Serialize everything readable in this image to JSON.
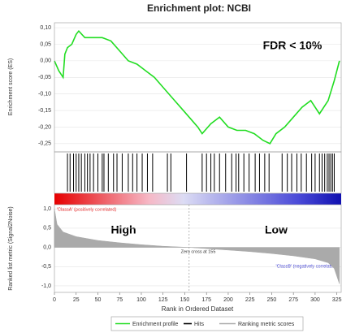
{
  "chart_data": [
    {
      "type": "line",
      "title": "Enrichment plot: NCBI",
      "ylabel": "Enrichment score (ES)",
      "annotation": "FDR < 10%",
      "xlim": [
        0,
        330
      ],
      "ylim": [
        -0.275,
        0.115
      ],
      "yticks": [
        {
          "value": 0.1,
          "label": "0,10"
        },
        {
          "value": 0.05,
          "label": "0,05"
        },
        {
          "value": 0,
          "label": "0,00"
        },
        {
          "value": -0.05,
          "label": "-0,05"
        },
        {
          "value": -0.1,
          "label": "-0,10"
        },
        {
          "value": -0.15,
          "label": "-0,15"
        },
        {
          "value": -0.2,
          "label": "-0,20"
        },
        {
          "value": -0.25,
          "label": "-0,25"
        }
      ],
      "grid": true,
      "series": [
        {
          "name": "Enrichment profile",
          "color": "#22dd22",
          "x": [
            0,
            5,
            10,
            12,
            15,
            20,
            25,
            28,
            35,
            45,
            55,
            65,
            75,
            85,
            95,
            105,
            115,
            125,
            135,
            145,
            155,
            165,
            170,
            180,
            190,
            200,
            210,
            220,
            230,
            240,
            248,
            255,
            265,
            275,
            285,
            295,
            305,
            315,
            322,
            328
          ],
          "values": [
            0,
            -0.03,
            -0.05,
            0.02,
            0.04,
            0.05,
            0.08,
            0.09,
            0.07,
            0.07,
            0.07,
            0.06,
            0.03,
            0,
            -0.01,
            -0.03,
            -0.05,
            -0.08,
            -0.11,
            -0.14,
            -0.17,
            -0.2,
            -0.22,
            -0.19,
            -0.17,
            -0.2,
            -0.21,
            -0.21,
            -0.22,
            -0.24,
            -0.25,
            -0.22,
            -0.2,
            -0.17,
            -0.14,
            -0.12,
            -0.16,
            -0.12,
            -0.06,
            0
          ]
        }
      ]
    },
    {
      "type": "rug",
      "xlim": [
        0,
        330
      ],
      "series": [
        {
          "name": "Hits",
          "color": "#000000",
          "x": [
            15,
            18,
            22,
            25,
            28,
            31,
            35,
            38,
            41,
            45,
            50,
            55,
            57,
            62,
            68,
            72,
            78,
            85,
            90,
            95,
            101,
            107,
            113,
            130,
            134,
            152,
            170,
            175,
            180,
            184,
            190,
            197,
            204,
            209,
            212,
            218,
            224,
            231,
            236,
            242,
            247,
            262,
            268,
            273,
            279,
            284,
            290,
            296,
            300,
            305,
            308,
            311,
            314,
            316,
            318,
            320,
            322
          ]
        }
      ]
    },
    {
      "type": "area",
      "ylabel": "Ranked list metric (Signal2Noise)",
      "xlabel": "Rank in Ordered Dataset",
      "class_a": "'ClassA' (positively correlated)",
      "class_b": "'ClassB' (negatively correlated)",
      "high": "High",
      "low": "Low",
      "zero_cross_label": "Zero cross at 155",
      "zero_cross": 155,
      "xlim": [
        0,
        330
      ],
      "ylim": [
        -1.17,
        1.11
      ],
      "xticks": [
        0,
        25,
        50,
        75,
        100,
        125,
        150,
        175,
        200,
        225,
        250,
        275,
        300,
        325
      ],
      "yticks": [
        {
          "value": 1,
          "label": "1,0"
        },
        {
          "value": 0.5,
          "label": "0,5"
        },
        {
          "value": 0,
          "label": "0,0"
        },
        {
          "value": -0.5,
          "label": "-0,5"
        },
        {
          "value": -1,
          "label": "-1,0"
        }
      ],
      "grid": true,
      "series": [
        {
          "name": "Ranking metric scores",
          "color": "#aaaaaa",
          "x": [
            0,
            3,
            10,
            25,
            50,
            75,
            100,
            125,
            155,
            180,
            200,
            225,
            250,
            275,
            300,
            315,
            322,
            328
          ],
          "values": [
            1,
            0.6,
            0.4,
            0.28,
            0.18,
            0.12,
            0.07,
            0.03,
            0,
            -0.04,
            -0.07,
            -0.11,
            -0.16,
            -0.22,
            -0.3,
            -0.4,
            -0.55,
            -0.95
          ]
        }
      ]
    }
  ]
}
